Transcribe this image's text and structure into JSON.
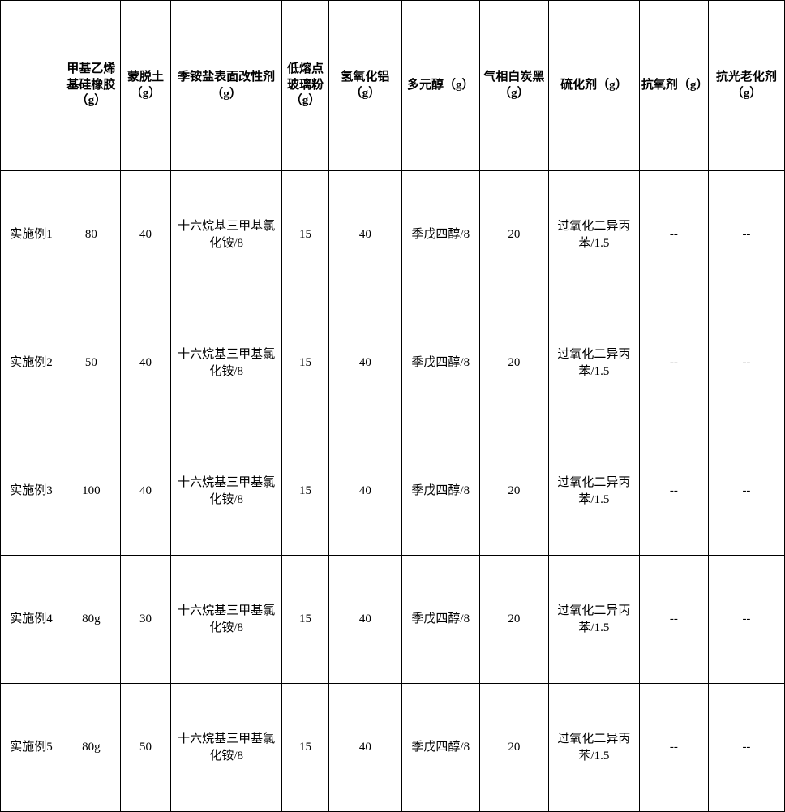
{
  "headers": {
    "c0": "",
    "c1": "甲基乙烯基硅橡胶（g）",
    "c2": "蒙脱土（g）",
    "c3": "季铵盐表面改性剂（g）",
    "c4": "低熔点玻璃粉（g）",
    "c5": "氢氧化铝（g）",
    "c6": "多元醇（g）",
    "c7": "气相白炭黑（g）",
    "c8": "硫化剂（g）",
    "c9": "抗氧剂（g）",
    "c10": "抗光老化剂（g）"
  },
  "rows": [
    {
      "label": "实施例1",
      "c1": "80",
      "c2": "40",
      "c3": "十六烷基三甲基氯化铵/8",
      "c4": "15",
      "c5": "40",
      "c6": "季戊四醇/8",
      "c7": "20",
      "c8": "过氧化二异丙苯/1.5",
      "c9": "--",
      "c10": "--"
    },
    {
      "label": "实施例2",
      "c1": "50",
      "c2": "40",
      "c3": "十六烷基三甲基氯化铵/8",
      "c4": "15",
      "c5": "40",
      "c6": "季戊四醇/8",
      "c7": "20",
      "c8": "过氧化二异丙苯/1.5",
      "c9": "--",
      "c10": "--"
    },
    {
      "label": "实施例3",
      "c1": "100",
      "c2": "40",
      "c3": "十六烷基三甲基氯化铵/8",
      "c4": "15",
      "c5": "40",
      "c6": "季戊四醇/8",
      "c7": "20",
      "c8": "过氧化二异丙苯/1.5",
      "c9": "--",
      "c10": "--"
    },
    {
      "label": "实施例4",
      "c1": "80g",
      "c2": "30",
      "c3": "十六烷基三甲基氯化铵/8",
      "c4": "15",
      "c5": "40",
      "c6": "季戊四醇/8",
      "c7": "20",
      "c8": "过氧化二异丙苯/1.5",
      "c9": "--",
      "c10": "--"
    },
    {
      "label": "实施例5",
      "c1": "80g",
      "c2": "50",
      "c3": "十六烷基三甲基氯化铵/8",
      "c4": "15",
      "c5": "40",
      "c6": "季戊四醇/8",
      "c7": "20",
      "c8": "过氧化二异丙苯/1.5",
      "c9": "--",
      "c10": "--"
    }
  ],
  "style": {
    "border_color": "#000000",
    "background_color": "#ffffff",
    "text_color": "#000000",
    "font_size": 15
  }
}
